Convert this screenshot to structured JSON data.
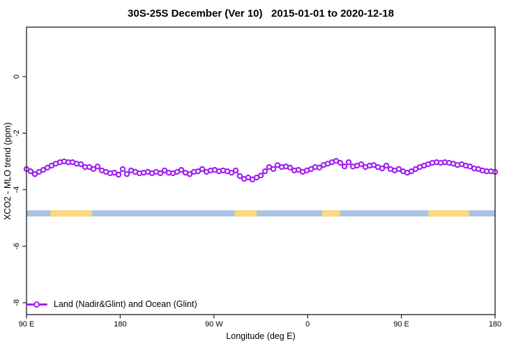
{
  "chart": {
    "title": "30S-25S December (Ver 10)   2015-01-01 to 2020-12-18"
  },
  "chart_data": {
    "type": "line",
    "title": "30S-25S December (Ver 10)   2015-01-01 to 2020-12-18",
    "xlabel": "Longitude (deg E)",
    "ylabel": "XCO2 - MLO trend (ppm)",
    "grid": false,
    "xlim_wrapped_lon": [
      90,
      540
    ],
    "ylim": [
      -8.42,
      1.75
    ],
    "x_ticks": [
      {
        "lon": 90,
        "label": "90 E"
      },
      {
        "lon": 180,
        "label": "180"
      },
      {
        "lon": 270,
        "label": "90 W"
      },
      {
        "lon": 360,
        "label": "0"
      },
      {
        "lon": 450,
        "label": "90 E"
      },
      {
        "lon": 540,
        "label": "180"
      }
    ],
    "y_ticks": [
      {
        "value": 0,
        "label": "0"
      },
      {
        "value": -2,
        "label": "-2"
      },
      {
        "value": -4,
        "label": "-4"
      },
      {
        "value": -6,
        "label": "-6"
      },
      {
        "value": -8,
        "label": "-8"
      }
    ],
    "series": [
      {
        "name": "Land (Nadir&Glint) and Ocean (Glint)",
        "color": "#A020F0",
        "marker": "open-circle",
        "lon_start": 90,
        "lon_end": 540,
        "values": [
          -3.27,
          -3.35,
          -3.45,
          -3.37,
          -3.3,
          -3.22,
          -3.15,
          -3.08,
          -3.03,
          -3.0,
          -3.03,
          -3.03,
          -3.08,
          -3.1,
          -3.2,
          -3.2,
          -3.27,
          -3.18,
          -3.32,
          -3.37,
          -3.42,
          -3.4,
          -3.47,
          -3.27,
          -3.45,
          -3.32,
          -3.37,
          -3.42,
          -3.4,
          -3.37,
          -3.42,
          -3.37,
          -3.42,
          -3.32,
          -3.4,
          -3.42,
          -3.37,
          -3.3,
          -3.4,
          -3.45,
          -3.37,
          -3.35,
          -3.27,
          -3.37,
          -3.32,
          -3.3,
          -3.35,
          -3.32,
          -3.35,
          -3.4,
          -3.32,
          -3.52,
          -3.62,
          -3.57,
          -3.64,
          -3.57,
          -3.5,
          -3.35,
          -3.2,
          -3.27,
          -3.13,
          -3.2,
          -3.18,
          -3.22,
          -3.32,
          -3.3,
          -3.37,
          -3.32,
          -3.27,
          -3.2,
          -3.22,
          -3.13,
          -3.08,
          -3.03,
          -2.98,
          -3.05,
          -3.18,
          -3.03,
          -3.18,
          -3.15,
          -3.1,
          -3.2,
          -3.15,
          -3.13,
          -3.2,
          -3.25,
          -3.15,
          -3.27,
          -3.32,
          -3.27,
          -3.35,
          -3.4,
          -3.35,
          -3.27,
          -3.2,
          -3.15,
          -3.1,
          -3.05,
          -3.03,
          -3.05,
          -3.03,
          -3.05,
          -3.08,
          -3.13,
          -3.1,
          -3.15,
          -3.18,
          -3.25,
          -3.27,
          -3.32,
          -3.35,
          -3.35,
          -3.37
        ]
      }
    ],
    "band": {
      "description": "horizontal coverage band",
      "value_top": -4.73,
      "value_bottom": -4.95,
      "base_color": "#A9C3E3",
      "highlight_color": "#FCD97F",
      "base_range_lon": [
        90,
        540
      ],
      "highlight_segments_lon": [
        [
          113,
          153
        ],
        [
          290,
          311
        ],
        [
          374,
          391
        ],
        [
          476,
          515
        ]
      ]
    },
    "legend": {
      "label": "Land (Nadir&Glint) and Ocean (Glint)",
      "position": "bottom-left",
      "marker_color": "#A020F0"
    },
    "frame_color": "#2b2b2b"
  }
}
